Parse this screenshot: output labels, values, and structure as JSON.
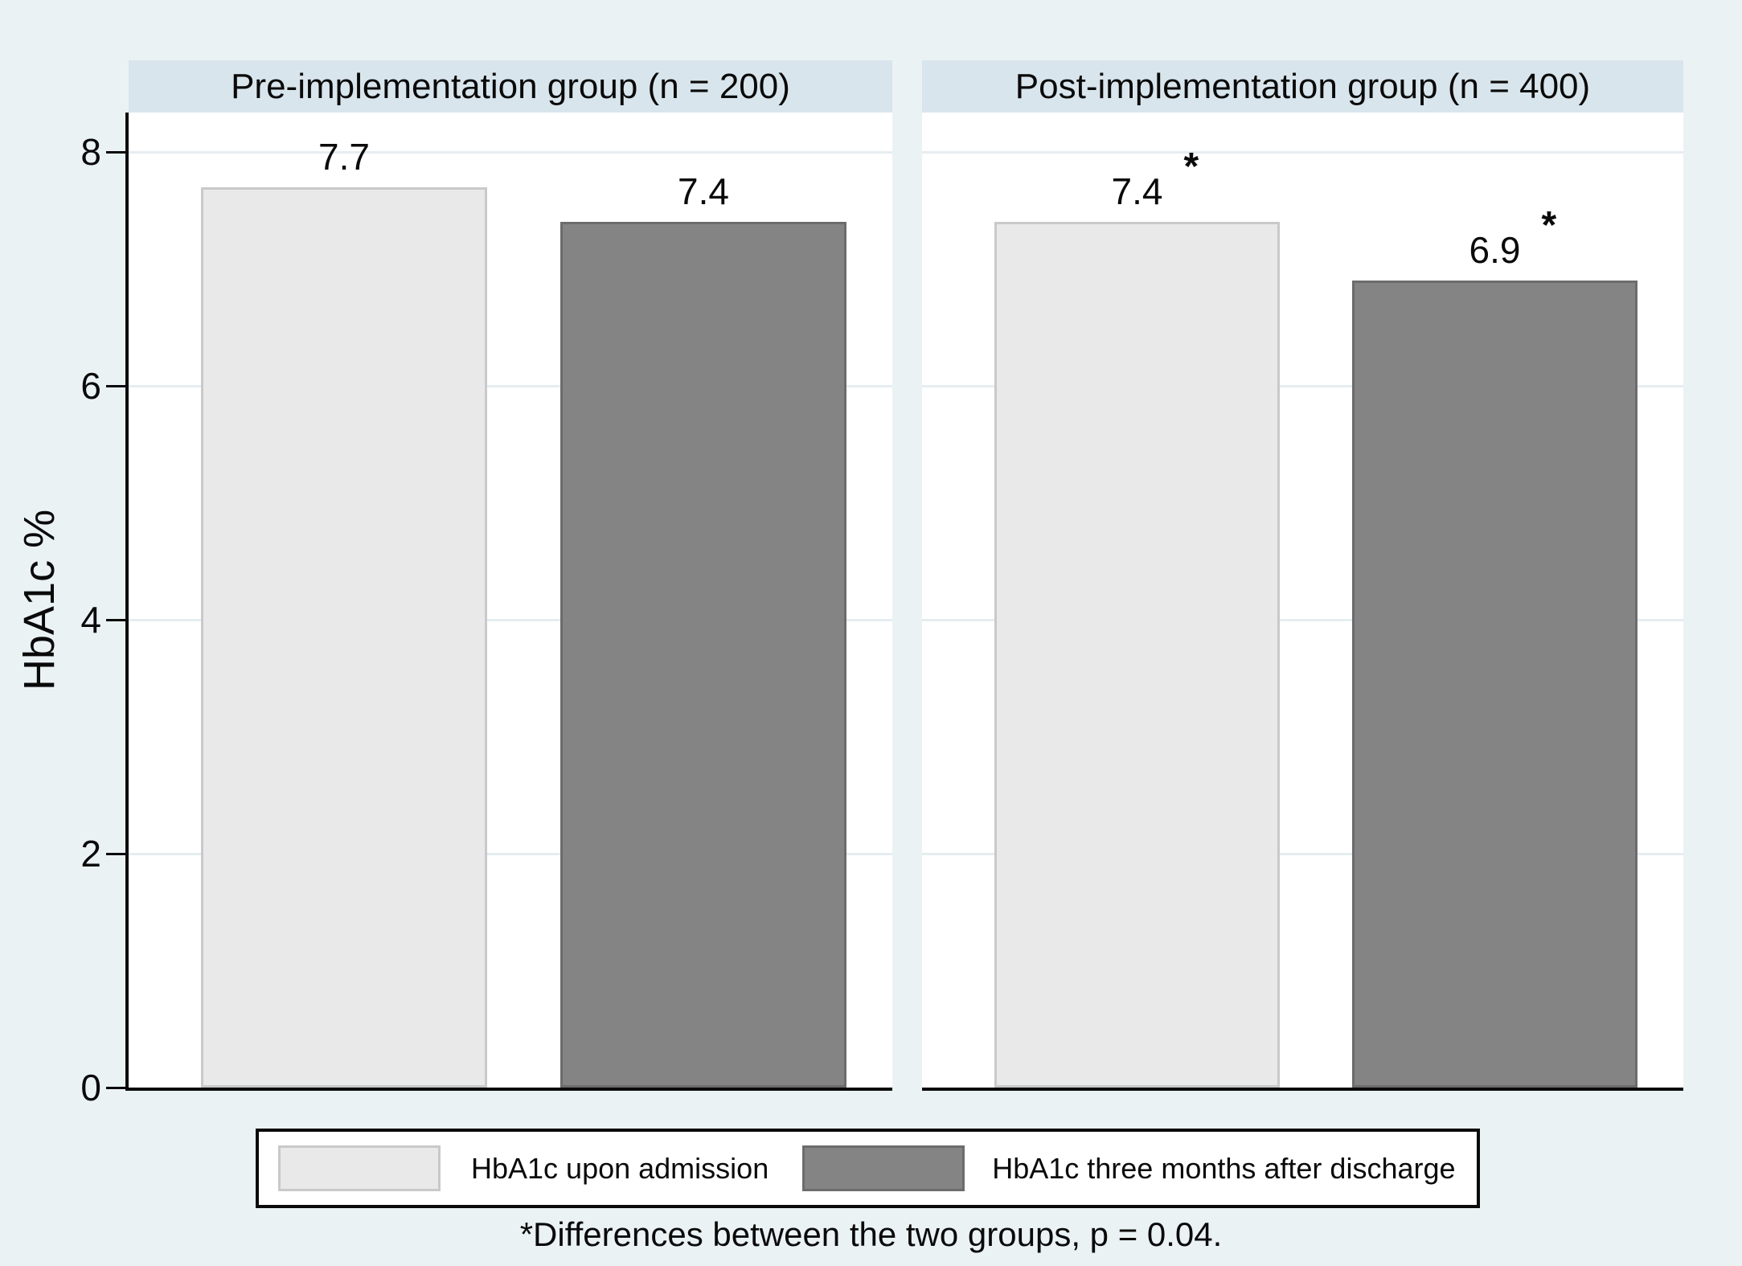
{
  "figure": {
    "y_axis_title": "HbA1c %",
    "footnote": "*Differences between the two groups, p = 0.04."
  },
  "legend": {
    "items": [
      {
        "label": "HbA1c upon admission",
        "color": "#e9e9e9",
        "border": "#c9c9c9"
      },
      {
        "label": "HbA1c three months after discharge",
        "color": "#848484",
        "border": "#6c6c6c"
      }
    ]
  },
  "colors": {
    "background": "#ebf2f4",
    "panel_header_band": "#d9e5ec",
    "plot_background": "#ffffff",
    "grid_line": "#e6edf0",
    "axis": "#0a0a0a",
    "text": "#0a0a0a"
  },
  "chart_data": {
    "type": "bar",
    "ylabel": "HbA1c %",
    "ylim": [
      0,
      8.34
    ],
    "yticks": [
      0,
      2,
      4,
      6,
      8
    ],
    "grid": true,
    "legend_position": "bottom",
    "series": [
      {
        "name": "HbA1c upon admission",
        "values": [
          7.7,
          7.4
        ]
      },
      {
        "name": "HbA1c three months after discharge",
        "values": [
          7.4,
          6.9
        ]
      }
    ],
    "panels": [
      {
        "title": "Pre-implementation group (n = 200)",
        "bars": [
          {
            "series_index": 0,
            "value": 7.7,
            "label": "7.7",
            "annotation": ""
          },
          {
            "series_index": 1,
            "value": 7.4,
            "label": "7.4",
            "annotation": ""
          }
        ]
      },
      {
        "title": "Post-implementation group (n = 400)",
        "bars": [
          {
            "series_index": 0,
            "value": 7.4,
            "label": "7.4",
            "annotation": "*"
          },
          {
            "series_index": 1,
            "value": 6.9,
            "label": "6.9",
            "annotation": "*"
          }
        ]
      }
    ],
    "annotation_note": "*Differences between the two groups, p = 0.04."
  }
}
